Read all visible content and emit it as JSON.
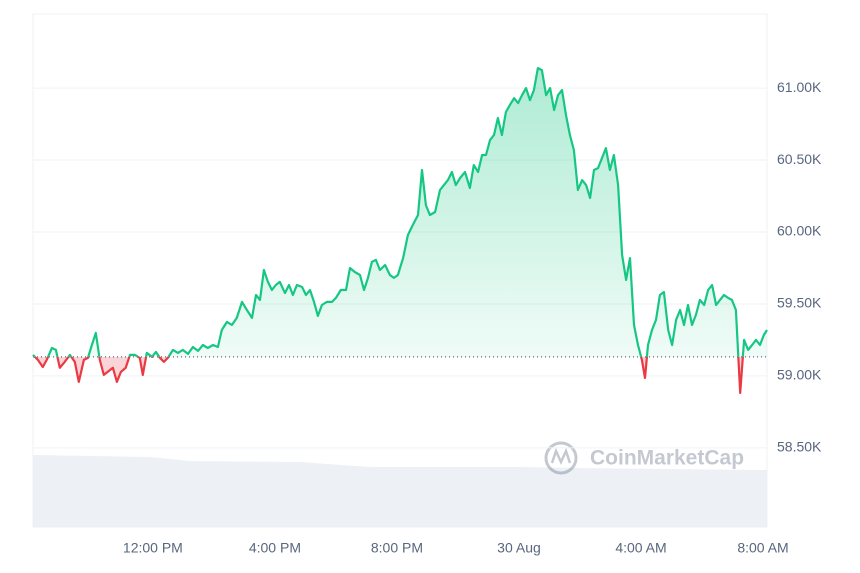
{
  "chart_data": {
    "type": "line",
    "watermark": "CoinMarketCap",
    "x": [
      8.07,
      8.23,
      8.39,
      8.52,
      8.69,
      8.82,
      8.95,
      9.11,
      9.28,
      9.44,
      9.57,
      9.74,
      9.87,
      10.0,
      10.13,
      10.26,
      10.39,
      10.52,
      10.69,
      10.82,
      10.95,
      11.11,
      11.25,
      11.41,
      11.57,
      11.67,
      11.8,
      11.97,
      12.1,
      12.23,
      12.36,
      12.49,
      12.66,
      12.82,
      12.98,
      13.15,
      13.31,
      13.48,
      13.64,
      13.8,
      13.97,
      14.13,
      14.26,
      14.43,
      14.59,
      14.75,
      14.92,
      15.08,
      15.25,
      15.38,
      15.51,
      15.64,
      15.77,
      15.9,
      16.03,
      16.16,
      16.33,
      16.46,
      16.59,
      16.72,
      16.89,
      17.02,
      17.15,
      17.28,
      17.41,
      17.54,
      17.7,
      17.87,
      18.0,
      18.16,
      18.33,
      18.46,
      18.62,
      18.79,
      18.92,
      19.05,
      19.18,
      19.31,
      19.44,
      19.61,
      19.77,
      19.9,
      20.03,
      20.2,
      20.36,
      20.52,
      20.69,
      20.82,
      20.95,
      21.08,
      21.25,
      21.41,
      21.54,
      21.67,
      21.8,
      21.93,
      22.07,
      22.23,
      22.39,
      22.52,
      22.66,
      22.79,
      22.92,
      23.05,
      23.18,
      23.31,
      23.44,
      23.57,
      23.7,
      23.84,
      23.97,
      24.1,
      24.23,
      24.36,
      24.49,
      24.62,
      24.75,
      24.89,
      25.02,
      25.15,
      25.28,
      25.41,
      25.54,
      25.67,
      25.8,
      25.93,
      26.07,
      26.2,
      26.33,
      26.46,
      26.59,
      26.72,
      26.85,
      26.98,
      27.11,
      27.25,
      27.38,
      27.51,
      27.64,
      27.77,
      27.9,
      28.03,
      28.13,
      28.23,
      28.36,
      28.49,
      28.62,
      28.75,
      28.89,
      29.02,
      29.15,
      29.28,
      29.41,
      29.54,
      29.67,
      29.8,
      29.93,
      30.07,
      30.2,
      30.33,
      30.46,
      30.59,
      30.72,
      30.85,
      30.98,
      31.11,
      31.25,
      31.38,
      31.51,
      31.64,
      31.77,
      31.9,
      32.03,
      32.13
    ],
    "values": [
      59146,
      59111,
      59062,
      59111,
      59194,
      59181,
      59056,
      59097,
      59146,
      59097,
      58958,
      59111,
      59125,
      59215,
      59299,
      59111,
      59007,
      59028,
      59056,
      58958,
      59028,
      59056,
      59146,
      59146,
      59125,
      59007,
      59160,
      59132,
      59167,
      59125,
      59097,
      59125,
      59181,
      59160,
      59181,
      59153,
      59201,
      59174,
      59215,
      59194,
      59215,
      59201,
      59319,
      59375,
      59354,
      59403,
      59514,
      59458,
      59403,
      59562,
      59528,
      59736,
      59653,
      59597,
      59632,
      59653,
      59576,
      59632,
      59562,
      59632,
      59618,
      59562,
      59597,
      59514,
      59417,
      59493,
      59514,
      59514,
      59542,
      59597,
      59597,
      59750,
      59722,
      59701,
      59597,
      59681,
      59792,
      59806,
      59736,
      59771,
      59701,
      59681,
      59701,
      59819,
      59979,
      60049,
      60118,
      60431,
      60187,
      60118,
      60139,
      60292,
      60326,
      60361,
      60417,
      60326,
      60375,
      60417,
      60306,
      60465,
      60417,
      60535,
      60535,
      60639,
      60674,
      60792,
      60674,
      60833,
      60882,
      60930,
      60896,
      60951,
      61000,
      60917,
      60986,
      61139,
      61125,
      60951,
      61000,
      60847,
      60951,
      60986,
      60812,
      60674,
      60569,
      60292,
      60361,
      60326,
      60236,
      60431,
      60444,
      60514,
      60583,
      60431,
      60535,
      60326,
      59840,
      59667,
      59819,
      59354,
      59215,
      59111,
      58986,
      59215,
      59319,
      59389,
      59562,
      59583,
      59319,
      59215,
      59389,
      59458,
      59354,
      59493,
      59354,
      59424,
      59528,
      59493,
      59597,
      59632,
      59493,
      59528,
      59562,
      59542,
      59528,
      59458,
      58882,
      59250,
      59181,
      59215,
      59250,
      59215,
      59285,
      59319
    ],
    "baseline": 59132,
    "color": "#16c784",
    "color_below": "#ea3943",
    "xlim": [
      8.07,
      32.13
    ],
    "xticks": [
      {
        "value": 12,
        "label": "12:00 PM"
      },
      {
        "value": 16,
        "label": "4:00 PM"
      },
      {
        "value": 20,
        "label": "8:00 PM"
      },
      {
        "value": 24,
        "label": "30 Aug"
      },
      {
        "value": 28,
        "label": "4:00 AM"
      },
      {
        "value": 32,
        "label": "8:00 AM"
      }
    ],
    "ylim": [
      57950,
      61515
    ],
    "yticks": [
      {
        "value": 58500,
        "label": "58.50K"
      },
      {
        "value": 59000,
        "label": "59.00K"
      },
      {
        "value": 59500,
        "label": "59.50K"
      },
      {
        "value": 60000,
        "label": "60.00K"
      },
      {
        "value": 60500,
        "label": "60.50K"
      },
      {
        "value": 61000,
        "label": "61.00K"
      }
    ],
    "grid": true
  }
}
